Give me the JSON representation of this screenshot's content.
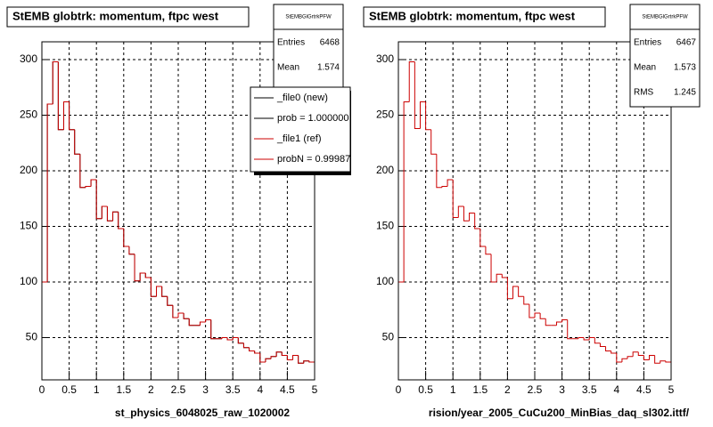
{
  "chart_data": [
    {
      "type": "histogram",
      "title": "StEMB globtrk: momentum, ftpc west",
      "xlabel": "st_physics_6048025_raw_1020002",
      "bins": [
        0,
        0.1,
        0.2,
        0.3,
        0.4,
        0.5,
        0.6,
        0.7,
        0.8,
        0.9,
        1.0,
        1.1,
        1.2,
        1.3,
        1.4,
        1.5,
        1.6,
        1.7,
        1.8,
        1.9,
        2.0,
        2.1,
        2.2,
        2.3,
        2.4,
        2.5,
        2.6,
        2.7,
        2.8,
        2.9,
        3.0,
        3.1,
        3.2,
        3.3,
        3.4,
        3.5,
        3.6,
        3.7,
        3.8,
        3.9,
        4.0,
        4.1,
        4.2,
        4.3,
        4.4,
        4.5,
        4.6,
        4.7,
        4.8,
        4.9,
        5.0
      ],
      "series": [
        {
          "name": "_file0 (new)",
          "color": "#000000",
          "values": [
            100,
            260,
            298,
            237,
            262,
            237,
            215,
            185,
            186,
            192,
            157,
            168,
            155,
            163,
            148,
            132,
            125,
            101,
            108,
            104,
            87,
            96,
            87,
            79,
            68,
            72,
            67,
            61,
            61,
            64,
            66,
            49,
            49,
            50,
            48,
            50,
            45,
            41,
            38,
            36,
            28,
            31,
            33,
            37,
            34,
            30,
            34,
            27,
            29,
            28
          ]
        },
        {
          "name": "_file1 (ref)",
          "color": "#cc0000",
          "values": [
            100,
            260,
            298,
            237,
            262,
            237,
            215,
            185,
            186,
            192,
            157,
            168,
            155,
            163,
            148,
            132,
            125,
            101,
            108,
            104,
            87,
            96,
            87,
            79,
            68,
            72,
            67,
            61,
            61,
            64,
            66,
            49,
            49,
            50,
            48,
            50,
            45,
            41,
            38,
            36,
            28,
            31,
            33,
            37,
            34,
            30,
            34,
            27,
            29,
            28
          ]
        }
      ],
      "probs": [
        "prob = 1.000000",
        "probN = 0.99987"
      ],
      "stats": {
        "name": "StEMBGlGrtrkPFW",
        "rows": [
          {
            "label": "Entries",
            "value": 6468
          },
          {
            "label": "Mean",
            "value": 1.574
          }
        ]
      },
      "xlim": [
        0,
        5
      ],
      "ylim": [
        12,
        316
      ],
      "xticks": [
        0,
        0.5,
        1,
        1.5,
        2,
        2.5,
        3,
        3.5,
        4,
        4.5,
        5
      ],
      "yticks": [
        50,
        100,
        150,
        200,
        250,
        300
      ],
      "grid": true
    },
    {
      "type": "histogram",
      "title": "StEMB globtrk: momentum, ftpc west",
      "xlabel": "rision/year_2005_CuCu200_MinBias_daq_sl302.ittf/",
      "bins": [
        0,
        0.1,
        0.2,
        0.3,
        0.4,
        0.5,
        0.6,
        0.7,
        0.8,
        0.9,
        1.0,
        1.1,
        1.2,
        1.3,
        1.4,
        1.5,
        1.6,
        1.7,
        1.8,
        1.9,
        2.0,
        2.1,
        2.2,
        2.3,
        2.4,
        2.5,
        2.6,
        2.7,
        2.8,
        2.9,
        3.0,
        3.1,
        3.2,
        3.3,
        3.4,
        3.5,
        3.6,
        3.7,
        3.8,
        3.9,
        4.0,
        4.1,
        4.2,
        4.3,
        4.4,
        4.5,
        4.6,
        4.7,
        4.8,
        4.9,
        5.0
      ],
      "series": [
        {
          "color": "#cc0000",
          "values": [
            100,
            262,
            298,
            238,
            262,
            237,
            215,
            185,
            186,
            192,
            158,
            168,
            155,
            162,
            148,
            132,
            125,
            100,
            107,
            104,
            85,
            96,
            87,
            80,
            68,
            72,
            67,
            61,
            61,
            64,
            66,
            49,
            49,
            50,
            48,
            50,
            45,
            42,
            38,
            36,
            28,
            31,
            33,
            37,
            34,
            30,
            34,
            27,
            29,
            28
          ]
        }
      ],
      "stats": {
        "name": "StEMBGlGrtrkPFW",
        "rows": [
          {
            "label": "Entries",
            "value": 6467
          },
          {
            "label": "Mean",
            "value": 1.573
          },
          {
            "label": "RMS",
            "value": 1.245
          }
        ]
      },
      "xlim": [
        0,
        5
      ],
      "ylim": [
        12,
        316
      ],
      "xticks": [
        0,
        0.5,
        1,
        1.5,
        2,
        2.5,
        3,
        3.5,
        4,
        4.5,
        5
      ],
      "yticks": [
        50,
        100,
        150,
        200,
        250,
        300
      ],
      "grid": true
    }
  ]
}
